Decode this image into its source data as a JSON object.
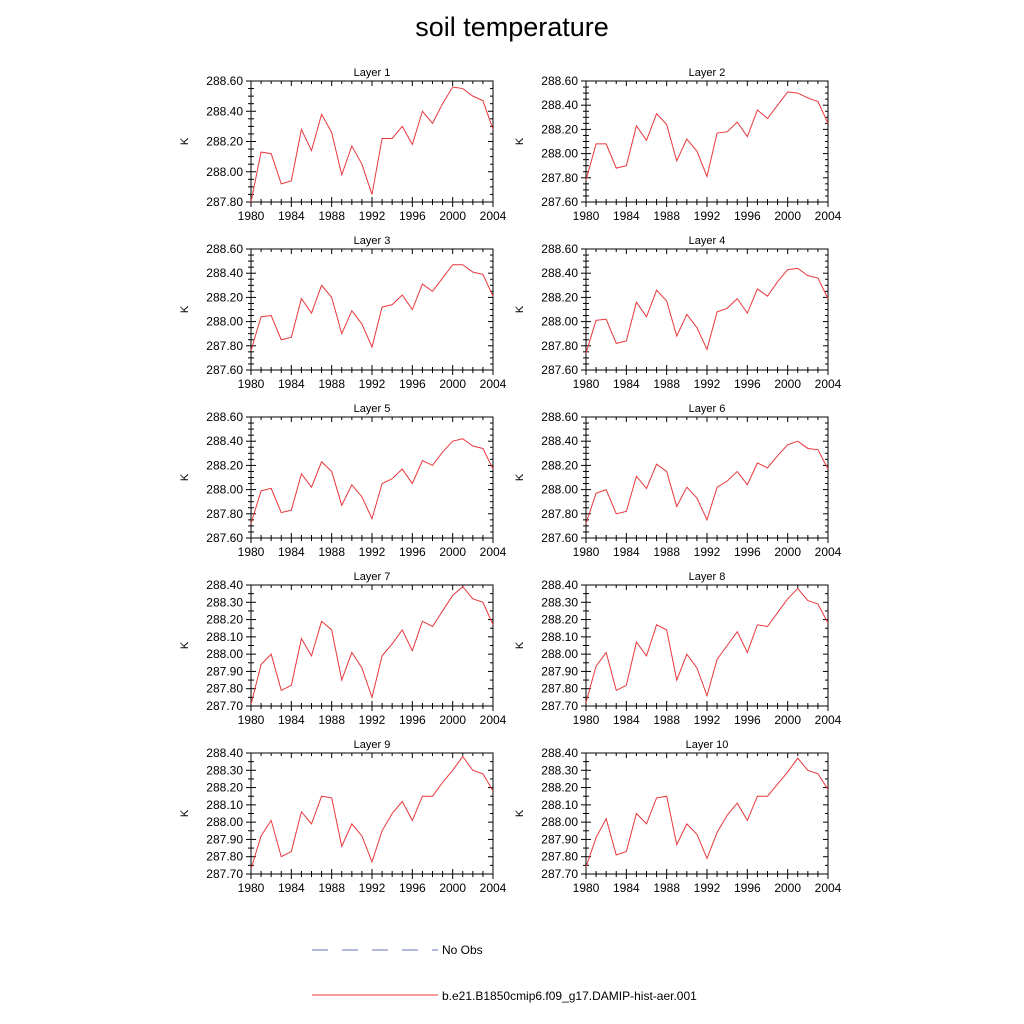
{
  "title": "soil temperature",
  "legend": {
    "obs_label": "No Obs",
    "model_label": "b.e21.B1850cmip6.f09_g17.DAMIP-hist-aer.001",
    "model_color": "#e8373b",
    "obs_color": "#6a72b3"
  },
  "chart_data": [
    {
      "type": "line",
      "title": "Layer 1",
      "ylabel": "K",
      "xlim": [
        1980,
        2004
      ],
      "ylim": [
        287.8,
        288.6
      ],
      "yticks": [
        "287.80",
        "288.00",
        "288.20",
        "288.40",
        "288.60"
      ],
      "xticks": [
        "1980",
        "1984",
        "1988",
        "1992",
        "1996",
        "2000",
        "2004"
      ],
      "x": [
        1980,
        1981,
        1982,
        1983,
        1984,
        1985,
        1986,
        1987,
        1988,
        1989,
        1990,
        1991,
        1992,
        1993,
        1994,
        1995,
        1996,
        1997,
        1998,
        1999,
        2000,
        2001,
        2002,
        2003,
        2004
      ],
      "series": [
        {
          "color": "#e8373b",
          "values": [
            287.8,
            288.13,
            288.12,
            287.92,
            287.94,
            288.28,
            288.14,
            288.38,
            288.26,
            287.98,
            288.17,
            288.05,
            287.85,
            288.22,
            288.22,
            288.3,
            288.18,
            288.4,
            288.32,
            288.45,
            288.56,
            288.55,
            288.5,
            288.47,
            288.28
          ]
        }
      ]
    },
    {
      "type": "line",
      "title": "Layer 2",
      "ylabel": "K",
      "xlim": [
        1980,
        2004
      ],
      "ylim": [
        287.6,
        288.6
      ],
      "yticks": [
        "287.60",
        "287.80",
        "288.00",
        "288.20",
        "288.40",
        "288.60"
      ],
      "xticks": [
        "1980",
        "1984",
        "1988",
        "1992",
        "1996",
        "2000",
        "2004"
      ],
      "x": [
        1980,
        1981,
        1982,
        1983,
        1984,
        1985,
        1986,
        1987,
        1988,
        1989,
        1990,
        1991,
        1992,
        1993,
        1994,
        1995,
        1996,
        1997,
        1998,
        1999,
        2000,
        2001,
        2002,
        2003,
        2004
      ],
      "series": [
        {
          "color": "#e8373b",
          "values": [
            287.78,
            288.08,
            288.08,
            287.88,
            287.9,
            288.23,
            288.11,
            288.33,
            288.24,
            287.94,
            288.12,
            288.02,
            287.81,
            288.17,
            288.18,
            288.26,
            288.14,
            288.36,
            288.29,
            288.4,
            288.51,
            288.5,
            288.46,
            288.43,
            288.25
          ]
        }
      ]
    },
    {
      "type": "line",
      "title": "Layer 3",
      "ylabel": "K",
      "xlim": [
        1980,
        2004
      ],
      "ylim": [
        287.6,
        288.6
      ],
      "yticks": [
        "287.60",
        "287.80",
        "288.00",
        "288.20",
        "288.40",
        "288.60"
      ],
      "xticks": [
        "1980",
        "1984",
        "1988",
        "1992",
        "1996",
        "2000",
        "2004"
      ],
      "x": [
        1980,
        1981,
        1982,
        1983,
        1984,
        1985,
        1986,
        1987,
        1988,
        1989,
        1990,
        1991,
        1992,
        1993,
        1994,
        1995,
        1996,
        1997,
        1998,
        1999,
        2000,
        2001,
        2002,
        2003,
        2004
      ],
      "series": [
        {
          "color": "#e8373b",
          "values": [
            287.76,
            288.04,
            288.05,
            287.85,
            287.87,
            288.19,
            288.07,
            288.3,
            288.2,
            287.9,
            288.09,
            287.98,
            287.79,
            288.12,
            288.14,
            288.22,
            288.1,
            288.31,
            288.25,
            288.36,
            288.47,
            288.47,
            288.41,
            288.39,
            288.21
          ]
        }
      ]
    },
    {
      "type": "line",
      "title": "Layer 4",
      "ylabel": "K",
      "xlim": [
        1980,
        2004
      ],
      "ylim": [
        287.6,
        288.6
      ],
      "yticks": [
        "287.60",
        "287.80",
        "288.00",
        "288.20",
        "288.40",
        "288.60"
      ],
      "xticks": [
        "1980",
        "1984",
        "1988",
        "1992",
        "1996",
        "2000",
        "2004"
      ],
      "x": [
        1980,
        1981,
        1982,
        1983,
        1984,
        1985,
        1986,
        1987,
        1988,
        1989,
        1990,
        1991,
        1992,
        1993,
        1994,
        1995,
        1996,
        1997,
        1998,
        1999,
        2000,
        2001,
        2002,
        2003,
        2004
      ],
      "series": [
        {
          "color": "#e8373b",
          "values": [
            287.74,
            288.01,
            288.02,
            287.82,
            287.84,
            288.16,
            288.04,
            288.26,
            288.17,
            287.88,
            288.06,
            287.95,
            287.77,
            288.08,
            288.11,
            288.19,
            288.07,
            288.27,
            288.21,
            288.33,
            288.43,
            288.44,
            288.38,
            288.36,
            288.19
          ]
        }
      ]
    },
    {
      "type": "line",
      "title": "Layer 5",
      "ylabel": "K",
      "xlim": [
        1980,
        2004
      ],
      "ylim": [
        287.6,
        288.6
      ],
      "yticks": [
        "287.60",
        "287.80",
        "288.00",
        "288.20",
        "288.40",
        "288.60"
      ],
      "xticks": [
        "1980",
        "1984",
        "1988",
        "1992",
        "1996",
        "2000",
        "2004"
      ],
      "x": [
        1980,
        1981,
        1982,
        1983,
        1984,
        1985,
        1986,
        1987,
        1988,
        1989,
        1990,
        1991,
        1992,
        1993,
        1994,
        1995,
        1996,
        1997,
        1998,
        1999,
        2000,
        2001,
        2002,
        2003,
        2004
      ],
      "series": [
        {
          "color": "#e8373b",
          "values": [
            287.72,
            287.99,
            288.01,
            287.81,
            287.83,
            288.13,
            288.02,
            288.23,
            288.15,
            287.87,
            288.04,
            287.94,
            287.76,
            288.05,
            288.09,
            288.17,
            288.05,
            288.24,
            288.2,
            288.31,
            288.4,
            288.42,
            288.36,
            288.34,
            288.17
          ]
        }
      ]
    },
    {
      "type": "line",
      "title": "Layer 6",
      "ylabel": "K",
      "xlim": [
        1980,
        2004
      ],
      "ylim": [
        287.6,
        288.6
      ],
      "yticks": [
        "287.60",
        "287.80",
        "288.00",
        "288.20",
        "288.40",
        "288.60"
      ],
      "xticks": [
        "1980",
        "1984",
        "1988",
        "1992",
        "1996",
        "2000",
        "2004"
      ],
      "x": [
        1980,
        1981,
        1982,
        1983,
        1984,
        1985,
        1986,
        1987,
        1988,
        1989,
        1990,
        1991,
        1992,
        1993,
        1994,
        1995,
        1996,
        1997,
        1998,
        1999,
        2000,
        2001,
        2002,
        2003,
        2004
      ],
      "series": [
        {
          "color": "#e8373b",
          "values": [
            287.72,
            287.97,
            288.0,
            287.8,
            287.82,
            288.11,
            288.01,
            288.21,
            288.15,
            287.86,
            288.02,
            287.93,
            287.75,
            288.02,
            288.07,
            288.15,
            288.04,
            288.22,
            288.18,
            288.28,
            288.37,
            288.4,
            288.34,
            288.33,
            288.17
          ]
        }
      ]
    },
    {
      "type": "line",
      "title": "Layer 7",
      "ylabel": "K",
      "xlim": [
        1980,
        2004
      ],
      "ylim": [
        287.7,
        288.4
      ],
      "yticks": [
        "287.70",
        "287.80",
        "287.90",
        "288.00",
        "288.10",
        "288.20",
        "288.30",
        "288.40"
      ],
      "xticks": [
        "1980",
        "1984",
        "1988",
        "1992",
        "1996",
        "2000",
        "2004"
      ],
      "x": [
        1980,
        1981,
        1982,
        1983,
        1984,
        1985,
        1986,
        1987,
        1988,
        1989,
        1990,
        1991,
        1992,
        1993,
        1994,
        1995,
        1996,
        1997,
        1998,
        1999,
        2000,
        2001,
        2002,
        2003,
        2004
      ],
      "series": [
        {
          "color": "#e8373b",
          "values": [
            287.71,
            287.94,
            288.0,
            287.79,
            287.82,
            288.09,
            287.99,
            288.19,
            288.14,
            287.85,
            288.01,
            287.92,
            287.75,
            287.99,
            288.06,
            288.14,
            288.02,
            288.19,
            288.16,
            288.25,
            288.34,
            288.39,
            288.32,
            288.3,
            288.17
          ]
        }
      ]
    },
    {
      "type": "line",
      "title": "Layer 8",
      "ylabel": "K",
      "xlim": [
        1980,
        2004
      ],
      "ylim": [
        287.7,
        288.4
      ],
      "yticks": [
        "287.70",
        "287.80",
        "287.90",
        "288.00",
        "288.10",
        "288.20",
        "288.30",
        "288.40"
      ],
      "xticks": [
        "1980",
        "1984",
        "1988",
        "1992",
        "1996",
        "2000",
        "2004"
      ],
      "x": [
        1980,
        1981,
        1982,
        1983,
        1984,
        1985,
        1986,
        1987,
        1988,
        1989,
        1990,
        1991,
        1992,
        1993,
        1994,
        1995,
        1996,
        1997,
        1998,
        1999,
        2000,
        2001,
        2002,
        2003,
        2004
      ],
      "series": [
        {
          "color": "#e8373b",
          "values": [
            287.72,
            287.93,
            288.01,
            287.79,
            287.82,
            288.07,
            287.99,
            288.17,
            288.14,
            287.85,
            288.0,
            287.92,
            287.76,
            287.97,
            288.05,
            288.13,
            288.01,
            288.17,
            288.16,
            288.24,
            288.32,
            288.38,
            288.31,
            288.29,
            288.18
          ]
        }
      ]
    },
    {
      "type": "line",
      "title": "Layer 9",
      "ylabel": "K",
      "xlim": [
        1980,
        2004
      ],
      "ylim": [
        287.7,
        288.4
      ],
      "yticks": [
        "287.70",
        "287.80",
        "287.90",
        "288.00",
        "288.10",
        "288.20",
        "288.30",
        "288.40"
      ],
      "xticks": [
        "1980",
        "1984",
        "1988",
        "1992",
        "1996",
        "2000",
        "2004"
      ],
      "x": [
        1980,
        1981,
        1982,
        1983,
        1984,
        1985,
        1986,
        1987,
        1988,
        1989,
        1990,
        1991,
        1992,
        1993,
        1994,
        1995,
        1996,
        1997,
        1998,
        1999,
        2000,
        2001,
        2002,
        2003,
        2004
      ],
      "series": [
        {
          "color": "#e8373b",
          "values": [
            287.73,
            287.92,
            288.01,
            287.8,
            287.83,
            288.06,
            287.99,
            288.15,
            288.14,
            287.86,
            287.99,
            287.92,
            287.77,
            287.95,
            288.05,
            288.12,
            288.01,
            288.15,
            288.15,
            288.23,
            288.3,
            288.38,
            288.3,
            288.28,
            288.18
          ]
        }
      ]
    },
    {
      "type": "line",
      "title": "Layer 10",
      "ylabel": "K",
      "xlim": [
        1980,
        2004
      ],
      "ylim": [
        287.7,
        288.4
      ],
      "yticks": [
        "287.70",
        "287.80",
        "287.90",
        "288.00",
        "288.10",
        "288.20",
        "288.30",
        "288.40"
      ],
      "xticks": [
        "1980",
        "1984",
        "1988",
        "1992",
        "1996",
        "2000",
        "2004"
      ],
      "x": [
        1980,
        1981,
        1982,
        1983,
        1984,
        1985,
        1986,
        1987,
        1988,
        1989,
        1990,
        1991,
        1992,
        1993,
        1994,
        1995,
        1996,
        1997,
        1998,
        1999,
        2000,
        2001,
        2002,
        2003,
        2004
      ],
      "series": [
        {
          "color": "#e8373b",
          "values": [
            287.74,
            287.91,
            288.02,
            287.81,
            287.83,
            288.05,
            287.99,
            288.14,
            288.15,
            287.87,
            287.99,
            287.93,
            287.79,
            287.94,
            288.04,
            288.11,
            288.01,
            288.15,
            288.15,
            288.22,
            288.29,
            288.37,
            288.3,
            288.28,
            288.19
          ]
        }
      ]
    }
  ]
}
